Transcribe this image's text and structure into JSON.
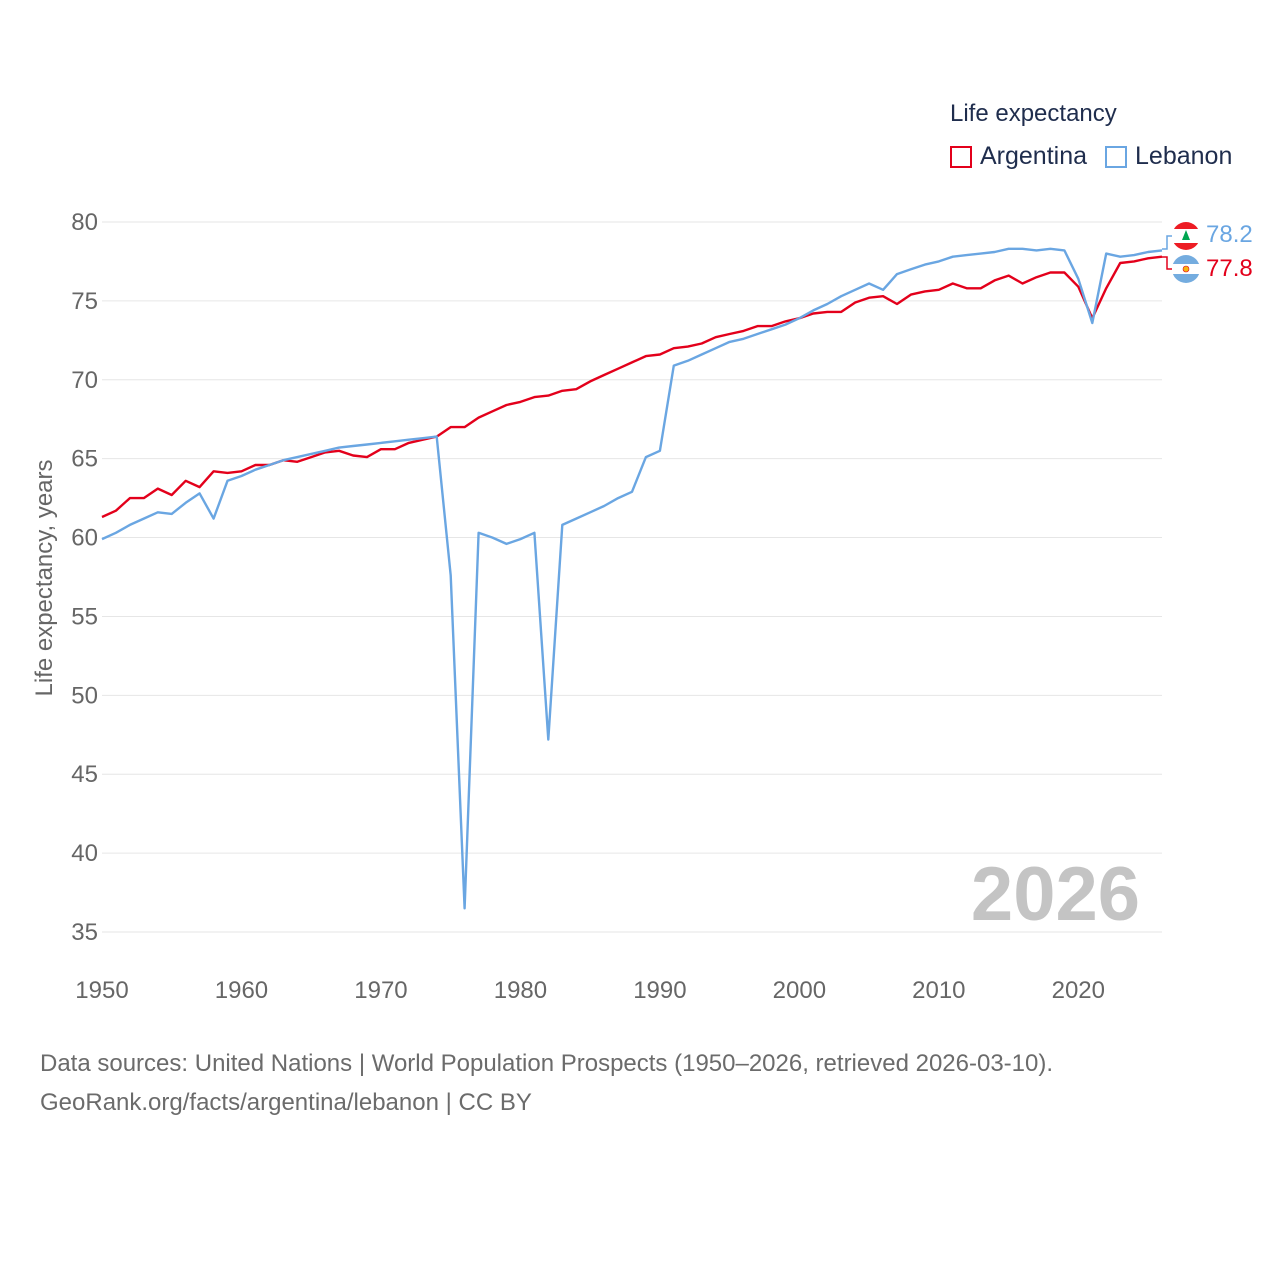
{
  "legend": {
    "title": "Life expectancy",
    "items": [
      {
        "name": "Argentina",
        "color": "#e3001b"
      },
      {
        "name": "Lebanon",
        "color": "#6aa6e2"
      }
    ]
  },
  "year_label": "2026",
  "end_labels": {
    "lebanon": "78.2",
    "argentina": "77.8"
  },
  "source": {
    "line1": "Data sources: United Nations | World Population Prospects (1950–2026, retrieved 2026-03-10).",
    "line2": "GeoRank.org/facts/argentina/lebanon | CC BY"
  },
  "chart_data": {
    "type": "line",
    "title": "Life expectancy",
    "xlabel": "",
    "ylabel": "Life expectancy, years",
    "xlim": [
      1950,
      2026
    ],
    "ylim": [
      35,
      80
    ],
    "xticks": [
      1950,
      1960,
      1970,
      1980,
      1990,
      2000,
      2010,
      2020
    ],
    "yticks": [
      35,
      40,
      45,
      50,
      55,
      60,
      65,
      70,
      75,
      80
    ],
    "grid": true,
    "legend_position": "top-right",
    "x": [
      1950,
      1951,
      1952,
      1953,
      1954,
      1955,
      1956,
      1957,
      1958,
      1959,
      1960,
      1961,
      1962,
      1963,
      1964,
      1965,
      1966,
      1967,
      1968,
      1969,
      1970,
      1971,
      1972,
      1973,
      1974,
      1975,
      1976,
      1977,
      1978,
      1979,
      1980,
      1981,
      1982,
      1983,
      1984,
      1985,
      1986,
      1987,
      1988,
      1989,
      1990,
      1991,
      1992,
      1993,
      1994,
      1995,
      1996,
      1997,
      1998,
      1999,
      2000,
      2001,
      2002,
      2003,
      2004,
      2005,
      2006,
      2007,
      2008,
      2009,
      2010,
      2011,
      2012,
      2013,
      2014,
      2015,
      2016,
      2017,
      2018,
      2019,
      2020,
      2021,
      2022,
      2023,
      2024,
      2025,
      2026
    ],
    "series": [
      {
        "name": "Argentina",
        "color": "#e3001b",
        "values": [
          61.3,
          61.7,
          62.5,
          62.5,
          63.1,
          62.7,
          63.6,
          63.2,
          64.2,
          64.1,
          64.2,
          64.6,
          64.6,
          64.9,
          64.8,
          65.1,
          65.4,
          65.5,
          65.2,
          65.1,
          65.6,
          65.6,
          66.0,
          66.2,
          66.4,
          67.0,
          67.0,
          67.6,
          68.0,
          68.4,
          68.6,
          68.9,
          69.0,
          69.3,
          69.4,
          69.9,
          70.3,
          70.7,
          71.1,
          71.5,
          71.6,
          72.0,
          72.1,
          72.3,
          72.7,
          72.9,
          73.1,
          73.4,
          73.4,
          73.7,
          73.9,
          74.2,
          74.3,
          74.3,
          74.9,
          75.2,
          75.3,
          74.8,
          75.4,
          75.6,
          75.7,
          76.1,
          75.8,
          75.8,
          76.3,
          76.6,
          76.1,
          76.5,
          76.8,
          76.8,
          75.9,
          73.9,
          75.8,
          77.4,
          77.5,
          77.7,
          77.8
        ]
      },
      {
        "name": "Lebanon",
        "color": "#6aa6e2",
        "values": [
          59.9,
          60.3,
          60.8,
          61.2,
          61.6,
          61.5,
          62.2,
          62.8,
          61.2,
          63.6,
          63.9,
          64.3,
          64.6,
          64.9,
          65.1,
          65.3,
          65.5,
          65.7,
          65.8,
          65.9,
          66.0,
          66.1,
          66.2,
          66.3,
          66.4,
          57.6,
          36.5,
          60.3,
          60.0,
          59.6,
          59.9,
          60.3,
          47.2,
          60.8,
          61.2,
          61.6,
          62.0,
          62.5,
          62.9,
          65.1,
          65.5,
          70.9,
          71.2,
          71.6,
          72.0,
          72.4,
          72.6,
          72.9,
          73.2,
          73.5,
          73.9,
          74.4,
          74.8,
          75.3,
          75.7,
          76.1,
          75.7,
          76.7,
          77.0,
          77.3,
          77.5,
          77.8,
          77.9,
          78.0,
          78.1,
          78.3,
          78.3,
          78.2,
          78.3,
          78.2,
          76.4,
          73.6,
          78.0,
          77.8,
          77.9,
          78.1,
          78.2
        ]
      }
    ]
  }
}
